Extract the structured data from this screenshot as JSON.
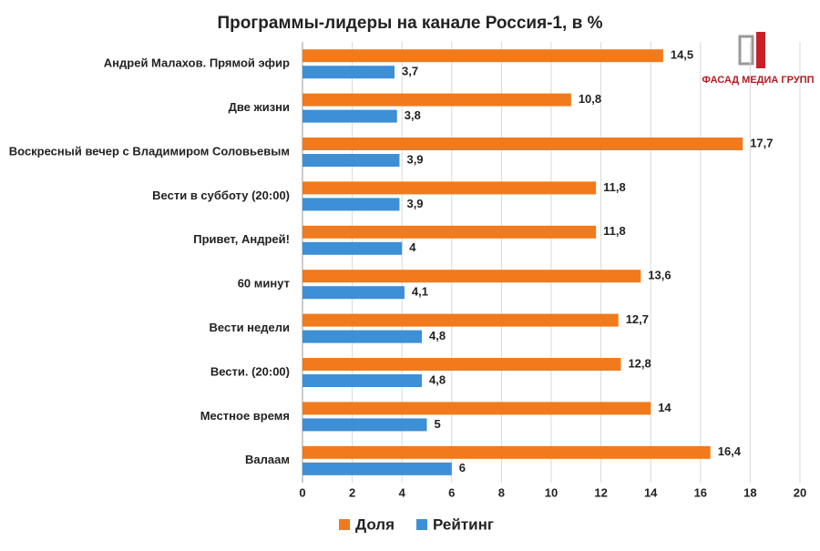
{
  "chart_data": {
    "type": "hbar",
    "title": "Программы-лидеры на канале Россия-1, в %",
    "categories": [
      "Андрей Малахов. Прямой эфир",
      "Две жизни",
      "Воскресный вечер с Владимиром Соловьевым",
      "Вести в субботу (20:00)",
      "Привет, Андрей!",
      "60 минут",
      "Вести недели",
      "Вести. (20:00)",
      "Местное время",
      "Валаам"
    ],
    "series": [
      {
        "name": "Доля",
        "color": "#f07a1c",
        "values": [
          14.5,
          10.8,
          17.7,
          11.8,
          11.8,
          13.6,
          12.7,
          12.8,
          14,
          16.4
        ],
        "value_labels": [
          "14,5",
          "10,8",
          "17,7",
          "11,8",
          "11,8",
          "13,6",
          "12,7",
          "12,8",
          "14",
          "16,4"
        ]
      },
      {
        "name": "Рейтинг",
        "color": "#3d8fd6",
        "values": [
          3.7,
          3.8,
          3.9,
          3.9,
          4,
          4.1,
          4.8,
          4.8,
          5,
          6
        ],
        "value_labels": [
          "3,7",
          "3,8",
          "3,9",
          "3,9",
          "4",
          "4,1",
          "4,8",
          "4,8",
          "5",
          "6"
        ]
      }
    ],
    "xlim": [
      0,
      20
    ],
    "xticks": [
      0,
      2,
      4,
      6,
      8,
      10,
      12,
      14,
      16,
      18,
      20
    ],
    "grid": true,
    "legend": "bottom"
  },
  "logo": "ФАСАД МЕДИА ГРУПП"
}
